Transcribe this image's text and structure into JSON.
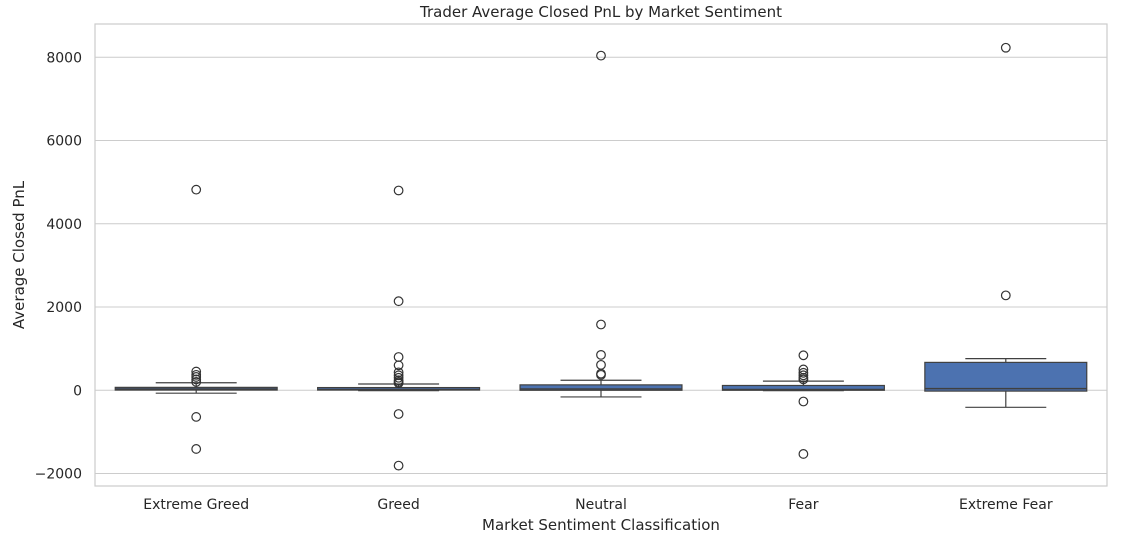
{
  "chart_data": {
    "type": "box",
    "title": "Trader Average Closed PnL by Market Sentiment",
    "xlabel": "Market Sentiment Classification",
    "ylabel": "Average Closed PnL",
    "ylim": [
      -2300,
      8800
    ],
    "yticks": [
      -2000,
      0,
      2000,
      4000,
      6000,
      8000
    ],
    "ytick_labels": [
      "−2000",
      "0",
      "2000",
      "4000",
      "6000",
      "8000"
    ],
    "grid": true,
    "box_color": "#4c72b0",
    "categories": [
      "Extreme Greed",
      "Greed",
      "Neutral",
      "Fear",
      "Extreme Fear"
    ],
    "boxes": [
      {
        "category": "Extreme Greed",
        "whisker_low": -70,
        "q1": 5,
        "median": 30,
        "q3": 70,
        "whisker_high": 180,
        "outliers": [
          4820,
          450,
          370,
          320,
          260,
          200,
          -640,
          -1410
        ]
      },
      {
        "category": "Greed",
        "whisker_low": -10,
        "q1": 5,
        "median": 20,
        "q3": 65,
        "whisker_high": 150,
        "outliers": [
          4800,
          2140,
          800,
          600,
          430,
          360,
          300,
          240,
          200,
          170,
          -570,
          -1810
        ]
      },
      {
        "category": "Neutral",
        "whisker_low": -160,
        "q1": 0,
        "median": 30,
        "q3": 130,
        "whisker_high": 240,
        "outliers": [
          8040,
          1580,
          850,
          610,
          400,
          370
        ]
      },
      {
        "category": "Fear",
        "whisker_low": -10,
        "q1": 0,
        "median": 20,
        "q3": 115,
        "whisker_high": 220,
        "outliers": [
          840,
          500,
          420,
          360,
          300,
          260,
          -270,
          -1530
        ]
      },
      {
        "category": "Extreme Fear",
        "whisker_low": -410,
        "q1": -20,
        "median": 40,
        "q3": 670,
        "whisker_high": 760,
        "outliers": [
          8230,
          2280
        ]
      }
    ]
  }
}
